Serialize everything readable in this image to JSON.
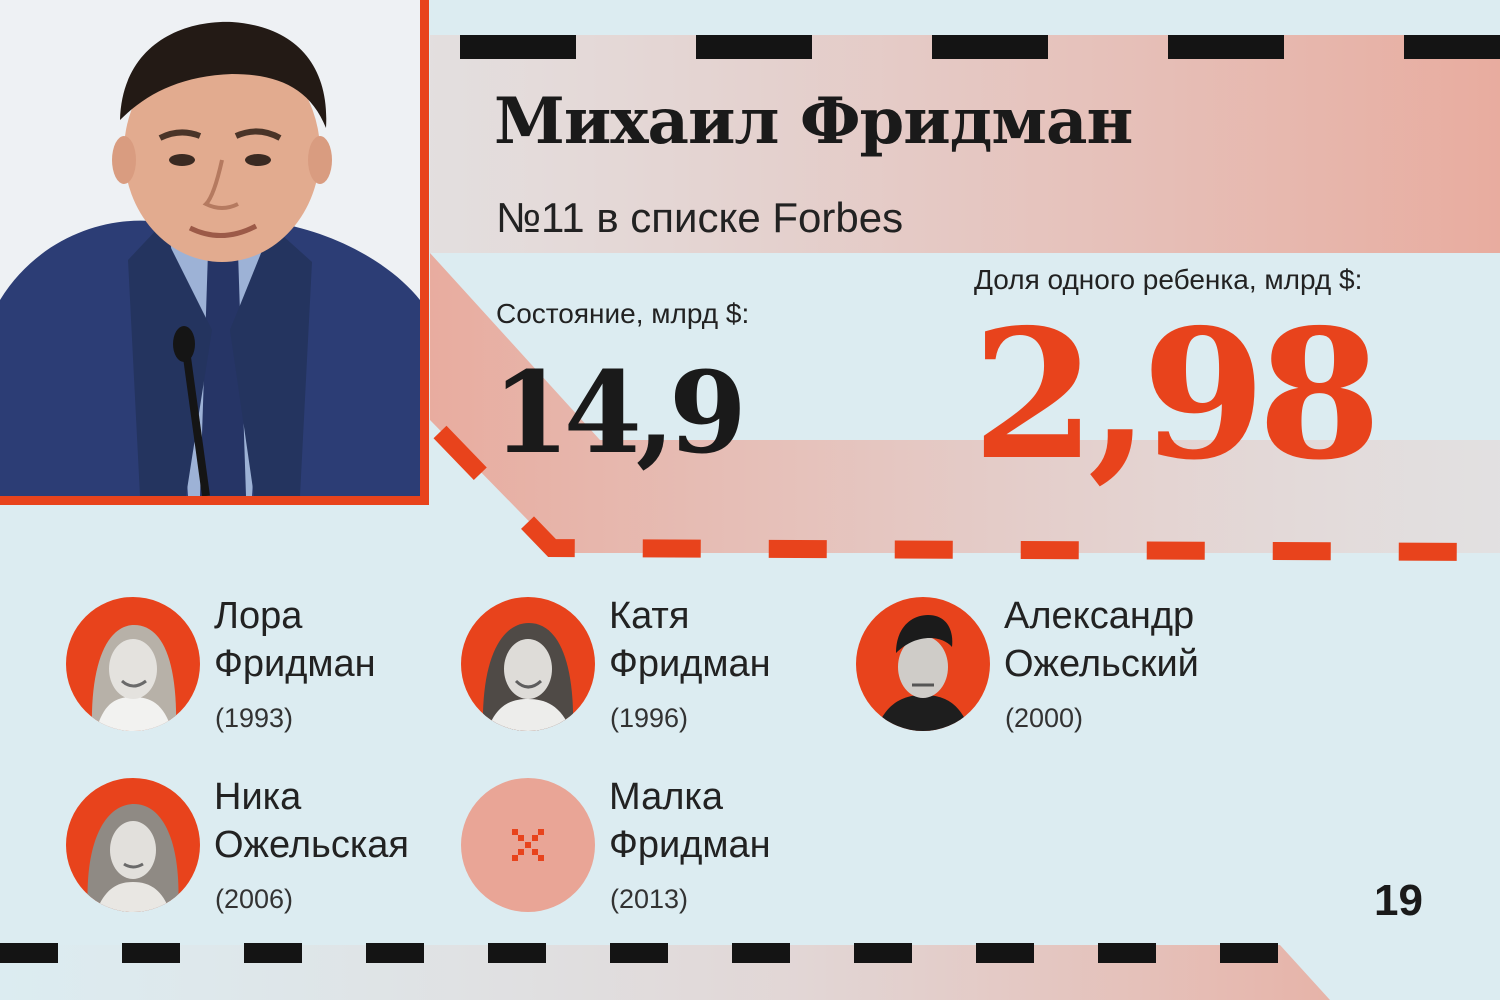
{
  "person": {
    "name": "Михаил Фридман",
    "rank": "№11 в списке Forbes",
    "wealth_label": "Состояние, млрд $:",
    "wealth_value": "14,9",
    "share_label": "Доля одного ребенка, млрд $:",
    "share_value": "2,98"
  },
  "children": [
    {
      "first": "Лора",
      "last": "Фридман",
      "year": "(1993)",
      "photo": "photo"
    },
    {
      "first": "Катя",
      "last": "Фридман",
      "year": "(1996)",
      "photo": "photo"
    },
    {
      "first": "Александр",
      "last": "Ожельский",
      "year": "(2000)",
      "photo": "photo"
    },
    {
      "first": "Ника",
      "last": "Ожельская",
      "year": "(2006)",
      "photo": "photo"
    },
    {
      "first": "Малка",
      "last": "Фридман",
      "year": "(2013)",
      "photo": "no-photo"
    }
  ],
  "page_number": "19",
  "colors": {
    "accent": "#e8431c",
    "background": "#dcecf1",
    "band": "#ecaea2",
    "no_photo": "#e9a596"
  },
  "icons": {
    "no_photo": "pixel-x-icon"
  }
}
